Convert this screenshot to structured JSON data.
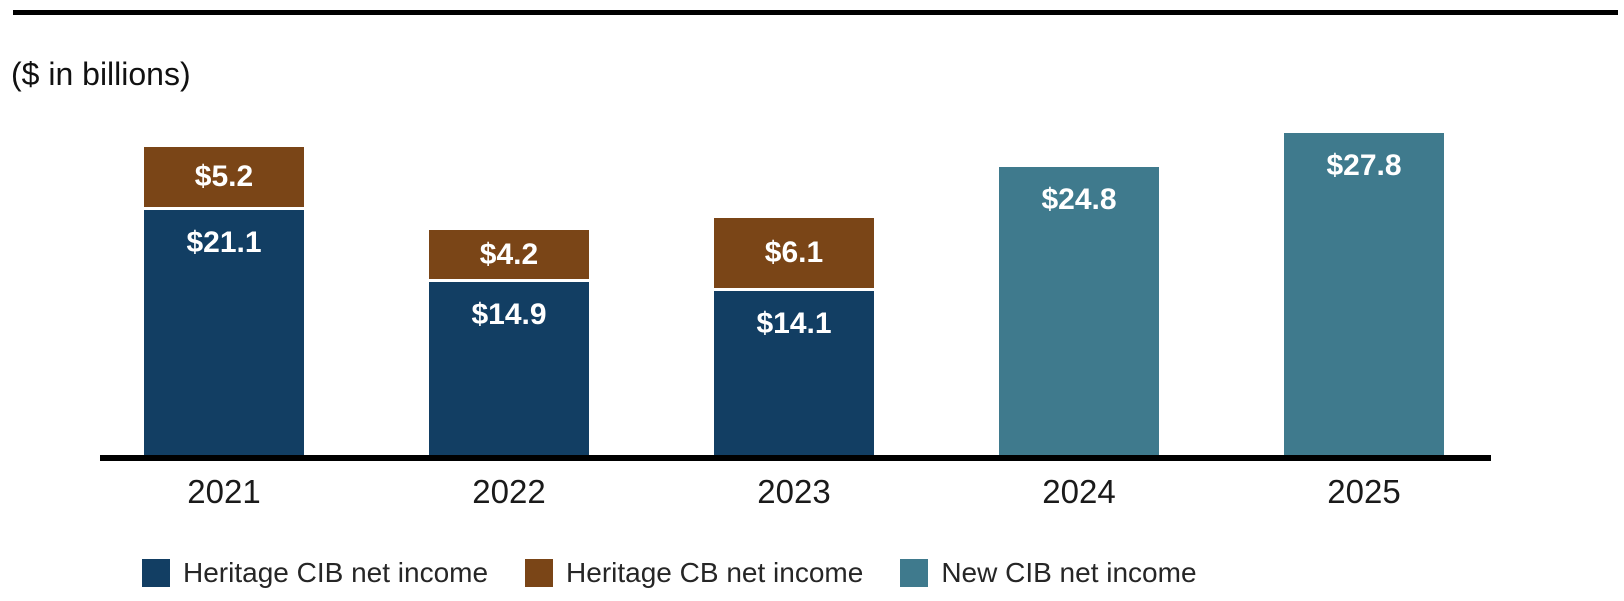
{
  "unit_note": "($ in billions)",
  "chart_data": {
    "type": "bar",
    "stacked": true,
    "title": "",
    "unit_note": "($ in billions)",
    "xlabel": "",
    "ylabel": "",
    "ylim": [
      0,
      30
    ],
    "grid": false,
    "legend_position": "bottom",
    "categories": [
      "2021",
      "2022",
      "2023",
      "2024",
      "2025"
    ],
    "series": [
      {
        "name": "Heritage CIB net income",
        "color": "#123E63",
        "values": [
          21.1,
          14.9,
          14.1,
          null,
          null
        ],
        "labels": [
          "$21.1",
          "$14.9",
          "$14.1",
          "",
          ""
        ]
      },
      {
        "name": "Heritage CB net income",
        "color": "#7A4517",
        "values": [
          5.2,
          4.2,
          6.1,
          null,
          null
        ],
        "labels": [
          "$5.2",
          "$4.2",
          "$6.1",
          "",
          ""
        ]
      },
      {
        "name": "New CIB net income",
        "color": "#3F7A8D",
        "values": [
          null,
          null,
          null,
          24.8,
          27.8
        ],
        "labels": [
          "",
          "",
          "",
          "$24.8",
          "$27.8"
        ]
      }
    ]
  }
}
